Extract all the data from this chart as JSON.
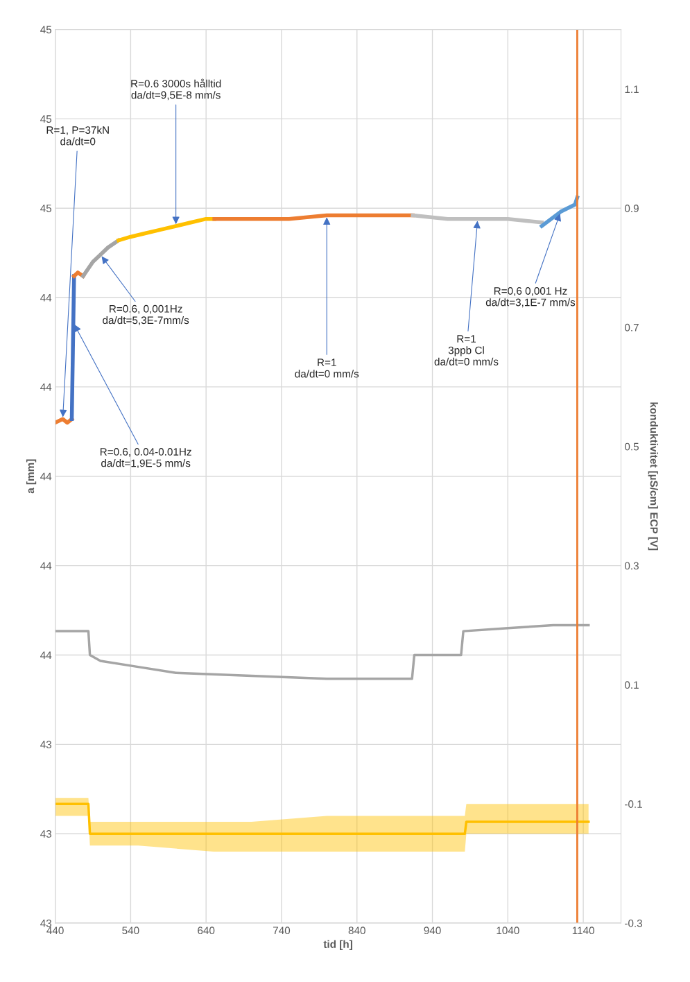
{
  "chart_data": {
    "type": "line",
    "xlabel": "tid [h]",
    "ylabel": "a [mm]",
    "y2label": "konduktivitet [µS/cm] ECP [V]",
    "xlim": [
      440,
      1190
    ],
    "xticks": [
      440,
      540,
      640,
      740,
      840,
      940,
      1040,
      1140
    ],
    "ylim": [
      42.75,
      45.25
    ],
    "yticks": [
      {
        "value": 42.75,
        "label": "43"
      },
      {
        "value": 43.0,
        "label": "43"
      },
      {
        "value": 43.25,
        "label": "43"
      },
      {
        "value": 43.5,
        "label": "44"
      },
      {
        "value": 43.75,
        "label": "44"
      },
      {
        "value": 44.0,
        "label": "44"
      },
      {
        "value": 44.25,
        "label": "44"
      },
      {
        "value": 44.5,
        "label": "44"
      },
      {
        "value": 44.75,
        "label": "45"
      },
      {
        "value": 45.0,
        "label": "45"
      },
      {
        "value": 45.25,
        "label": "45"
      }
    ],
    "y2lim": [
      -0.3,
      1.2
    ],
    "y2ticks": [
      -0.3,
      -0.1,
      0.1,
      0.3,
      0.5,
      0.7,
      0.9,
      1.1
    ],
    "grid": true,
    "marker": "none",
    "line_style": "solid",
    "series": [
      {
        "color": "#ed7d31",
        "x": [
          440,
          450,
          456,
          462
        ],
        "values": [
          44.15,
          44.16,
          44.15,
          44.16
        ]
      },
      {
        "color": "#4472c4",
        "x": [
          462,
          465
        ],
        "values": [
          44.16,
          44.56
        ]
      },
      {
        "color": "#ed7d31",
        "x": [
          465,
          470,
          477
        ],
        "values": [
          44.56,
          44.57,
          44.56
        ]
      },
      {
        "color": "#a5a5a5",
        "x": [
          477,
          490,
          500,
          510,
          524
        ],
        "values": [
          44.56,
          44.6,
          44.62,
          44.64,
          44.66
        ]
      },
      {
        "color": "#ffc000",
        "x": [
          524,
          540,
          560,
          580,
          600,
          620,
          640,
          651
        ],
        "values": [
          44.66,
          44.67,
          44.68,
          44.69,
          44.7,
          44.71,
          44.72,
          44.72
        ]
      },
      {
        "color": "#ed7d31",
        "x": [
          651,
          700,
          750,
          800,
          850,
          914
        ],
        "values": [
          44.72,
          44.72,
          44.72,
          44.73,
          44.73,
          44.73
        ]
      },
      {
        "color": "#bfbfbf",
        "x": [
          914,
          960,
          1000,
          1040,
          1085
        ],
        "values": [
          44.73,
          44.72,
          44.72,
          44.72,
          44.71
        ]
      },
      {
        "color": "#5b9bd5",
        "x": [
          1085,
          1110,
          1129,
          1132
        ],
        "values": [
          44.7,
          44.74,
          44.76,
          44.78
        ]
      },
      {
        "color": "#a5a5a5",
        "axis": "y2",
        "x": [
          440,
          484,
          486,
          500,
          550,
          600,
          700,
          800,
          913,
          916,
          978,
          981,
          1040,
          1100,
          1147
        ],
        "values": [
          0.19,
          0.19,
          0.15,
          0.14,
          0.13,
          0.12,
          0.115,
          0.11,
          0.11,
          0.15,
          0.15,
          0.19,
          0.195,
          0.2,
          0.2
        ]
      },
      {
        "color": "#ffc000",
        "axis": "y2",
        "x": [
          440,
          484,
          486,
          550,
          650,
          700,
          800,
          850,
          900,
          983,
          985,
          1147
        ],
        "values": [
          -0.1,
          -0.1,
          -0.15,
          -0.15,
          -0.15,
          -0.15,
          -0.15,
          -0.15,
          -0.15,
          -0.15,
          -0.13,
          -0.13
        ],
        "lower": [
          -0.12,
          -0.12,
          -0.17,
          -0.17,
          -0.18,
          -0.18,
          -0.18,
          -0.18,
          -0.18,
          -0.18,
          -0.15,
          -0.15
        ],
        "upper": [
          -0.09,
          -0.09,
          -0.13,
          -0.13,
          -0.13,
          -0.13,
          -0.12,
          -0.12,
          -0.12,
          -0.12,
          -0.1,
          -0.1
        ]
      }
    ],
    "ref_lines": [
      {
        "axis": "x",
        "value": 1132,
        "color": "#ed7d31"
      }
    ],
    "annotations": [
      {
        "text": "R=1, P=37kN\nda/dt=0",
        "x": 450,
        "y": 44.16
      },
      {
        "text": "R=0.6, 0.04-0.01Hz\nda/dt=1,9E-5 mm/s",
        "x": 464,
        "y": 44.43
      },
      {
        "text": "R=0.6, 0,001Hz\nda/dt=5,3E-7mm/s",
        "x": 500,
        "y": 44.62
      },
      {
        "text": "R=0.6 3000s hålltid\nda/dt=9,5E-8 mm/s",
        "x": 600,
        "y": 44.7
      },
      {
        "text": "R=1\nda/dt=0 mm/s",
        "x": 800,
        "y": 44.73
      },
      {
        "text": "R=1\n3ppb Cl\nda/dt=0 mm/s",
        "x": 1000,
        "y": 44.72
      },
      {
        "text": "R=0,6 0,001 Hz\nda/dt=3,1E-7 mm/s",
        "x": 1110,
        "y": 44.74
      }
    ]
  }
}
